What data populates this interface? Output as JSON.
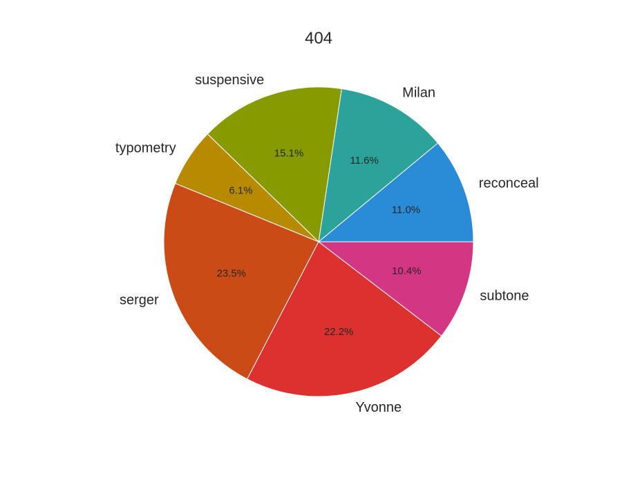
{
  "chart_data": {
    "type": "pie",
    "title": "404",
    "categories": [
      "reconceal",
      "Milan",
      "suspensive",
      "typometry",
      "serger",
      "Yvonne",
      "subtone"
    ],
    "values": [
      11.0,
      11.6,
      15.1,
      6.1,
      23.5,
      22.2,
      10.4
    ],
    "percent_labels": [
      "11.0%",
      "11.6%",
      "15.1%",
      "6.1%",
      "23.5%",
      "22.2%",
      "10.4%"
    ],
    "colors": [
      "#2a8bd6",
      "#2ba39a",
      "#879a00",
      "#b78a00",
      "#cb4b16",
      "#dc322f",
      "#d33682"
    ],
    "start_angle_deg": 0,
    "direction": "counterclockwise"
  }
}
